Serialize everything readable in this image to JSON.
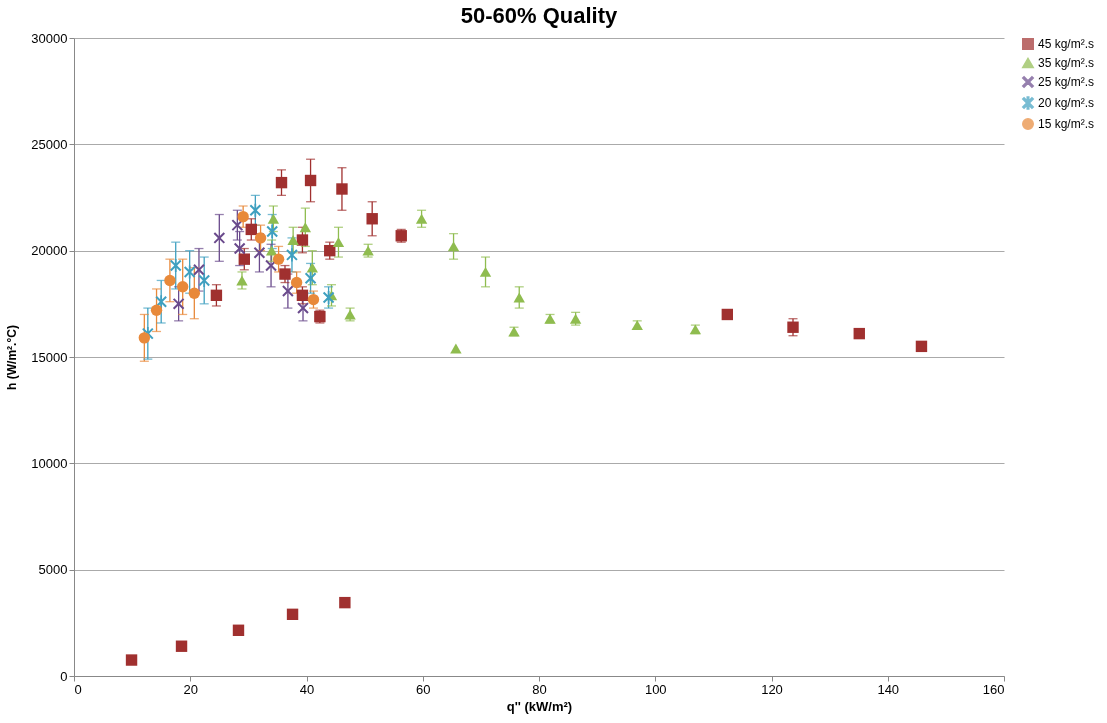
{
  "chart_data": {
    "type": "scatter",
    "title": "50-60% Quality",
    "xlabel": "q'' (kW/m²)",
    "ylabel": "h (W/m².°C)",
    "xlim": [
      0,
      160
    ],
    "xticks": [
      0,
      20,
      40,
      60,
      80,
      100,
      120,
      140,
      160
    ],
    "ylim": [
      0,
      30000
    ],
    "yticks": [
      0,
      5000,
      10000,
      15000,
      20000,
      25000,
      30000
    ],
    "grid": "y",
    "legend": "right",
    "series": [
      {
        "name": "45 kg/m².s",
        "color": "#a0302f",
        "marker": "square",
        "x": [
          9.9,
          18.5,
          28.3,
          37.6,
          46.6,
          24.5,
          29.3,
          30.5,
          35.7,
          36.3,
          39.3,
          39.3,
          40.7,
          42.3,
          44.0,
          46.1,
          51.3,
          56.3,
          112.4,
          123.7,
          135.1,
          145.8
        ],
        "values": [
          750,
          1400,
          2150,
          2900,
          3450,
          17900,
          19600,
          21000,
          23200,
          18900,
          20500,
          17900,
          23300,
          16900,
          20000,
          22900,
          21500,
          20700,
          17000,
          16400,
          16100,
          15500
        ],
        "errors": [
          null,
          null,
          null,
          null,
          null,
          500,
          500,
          500,
          600,
          400,
          600,
          400,
          1000,
          300,
          400,
          1000,
          800,
          300,
          200,
          400,
          null,
          null
        ]
      },
      {
        "name": "35 kg/m².s",
        "color": "#8fbc4f",
        "marker": "triangle",
        "x": [
          28.9,
          34.0,
          34.3,
          37.7,
          39.8,
          41.0,
          44.3,
          45.5,
          47.5,
          50.6,
          59.8,
          65.3,
          65.7,
          70.8,
          75.7,
          76.6,
          81.9,
          86.3,
          96.9,
          106.9
        ],
        "values": [
          18600,
          20000,
          21500,
          20500,
          21100,
          19200,
          17900,
          20400,
          17000,
          20000,
          21500,
          20200,
          15400,
          19000,
          16200,
          17800,
          16800,
          16800,
          16500,
          16300
        ],
        "errors": [
          400,
          500,
          600,
          600,
          900,
          800,
          500,
          700,
          300,
          300,
          400,
          600,
          null,
          700,
          200,
          500,
          200,
          300,
          200,
          200
        ]
      },
      {
        "name": "25 kg/m².s",
        "color": "#6a4a8c",
        "marker": "cross",
        "x": [
          18.0,
          21.5,
          25.0,
          28.1,
          28.5,
          31.9,
          33.9,
          36.8,
          39.4
        ],
        "values": [
          17500,
          19100,
          20600,
          21200,
          20100,
          19900,
          19300,
          18100,
          17300
        ],
        "errors": [
          800,
          1000,
          1100,
          700,
          800,
          900,
          1000,
          800,
          600
        ]
      },
      {
        "name": "20 kg/m².s",
        "color": "#3fa0c0",
        "marker": "star",
        "x": [
          12.7,
          15.0,
          17.5,
          19.9,
          22.4,
          31.2,
          34.1,
          37.5,
          40.7,
          43.8
        ],
        "values": [
          16100,
          17600,
          19300,
          19000,
          18600,
          21900,
          20900,
          19800,
          18700,
          17800
        ],
        "errors": [
          1200,
          1000,
          1100,
          1000,
          1100,
          700,
          800,
          800,
          700,
          500
        ]
      },
      {
        "name": "15 kg/m².s",
        "color": "#e8893a",
        "marker": "circle",
        "x": [
          12.1,
          14.2,
          16.5,
          18.7,
          20.7,
          29.1,
          32.1,
          35.2,
          38.3,
          41.2
        ],
        "values": [
          15900,
          17200,
          18600,
          18300,
          18000,
          21600,
          20600,
          19600,
          18500,
          17700
        ],
        "errors": [
          1100,
          1000,
          1000,
          1300,
          1200,
          500,
          600,
          600,
          500,
          400
        ]
      }
    ]
  }
}
